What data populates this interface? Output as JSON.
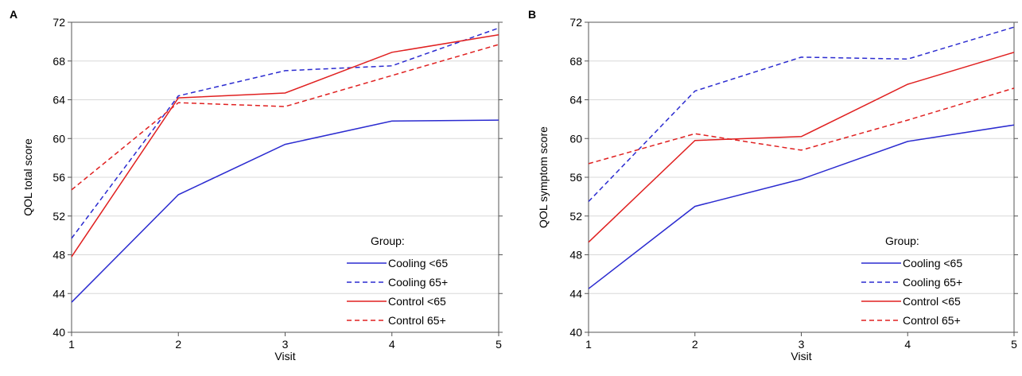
{
  "panels": [
    {
      "label": "A",
      "chart_data": {
        "type": "line",
        "title": "",
        "xlabel": "Visit",
        "ylabel": "QOL total score",
        "x": [
          1,
          2,
          3,
          4,
          5
        ],
        "xticks": [
          "1",
          "2",
          "3",
          "4",
          "5"
        ],
        "ylim": [
          40,
          72
        ],
        "yticks": [
          "40",
          "44",
          "48",
          "52",
          "56",
          "60",
          "64",
          "68",
          "72"
        ],
        "grid": true,
        "legend": {
          "title": "Group:",
          "placement": "bottom-right"
        },
        "series": [
          {
            "name": "Cooling <65",
            "color": "#2b2bd0",
            "dash": "solid",
            "values": [
              43.1,
              54.2,
              59.4,
              61.8,
              61.9
            ]
          },
          {
            "name": "Cooling 65+",
            "color": "#2b2bd0",
            "dash": "dashed",
            "values": [
              49.7,
              64.4,
              67.0,
              67.5,
              71.4
            ]
          },
          {
            "name": "Control <65",
            "color": "#e02020",
            "dash": "solid",
            "values": [
              47.8,
              64.2,
              64.7,
              68.9,
              70.7
            ]
          },
          {
            "name": "Control 65+",
            "color": "#e02020",
            "dash": "dashed",
            "values": [
              54.7,
              63.7,
              63.3,
              66.5,
              69.7
            ]
          }
        ]
      }
    },
    {
      "label": "B",
      "chart_data": {
        "type": "line",
        "title": "",
        "xlabel": "Visit",
        "ylabel": "QOL symptom score",
        "x": [
          1,
          2,
          3,
          4,
          5
        ],
        "xticks": [
          "1",
          "2",
          "3",
          "4",
          "5"
        ],
        "ylim": [
          40,
          72
        ],
        "yticks": [
          "40",
          "44",
          "48",
          "52",
          "56",
          "60",
          "64",
          "68",
          "72"
        ],
        "grid": true,
        "legend": {
          "title": "Group:",
          "placement": "bottom-right"
        },
        "series": [
          {
            "name": "Cooling <65",
            "color": "#2b2bd0",
            "dash": "solid",
            "values": [
              44.5,
              53.0,
              55.8,
              59.7,
              61.4
            ]
          },
          {
            "name": "Cooling 65+",
            "color": "#2b2bd0",
            "dash": "dashed",
            "values": [
              53.5,
              64.9,
              68.4,
              68.2,
              71.5
            ]
          },
          {
            "name": "Control <65",
            "color": "#e02020",
            "dash": "solid",
            "values": [
              49.3,
              59.8,
              60.2,
              65.6,
              68.9
            ]
          },
          {
            "name": "Control 65+",
            "color": "#e02020",
            "dash": "dashed",
            "values": [
              57.4,
              60.5,
              58.8,
              61.9,
              65.2
            ]
          }
        ]
      }
    }
  ]
}
